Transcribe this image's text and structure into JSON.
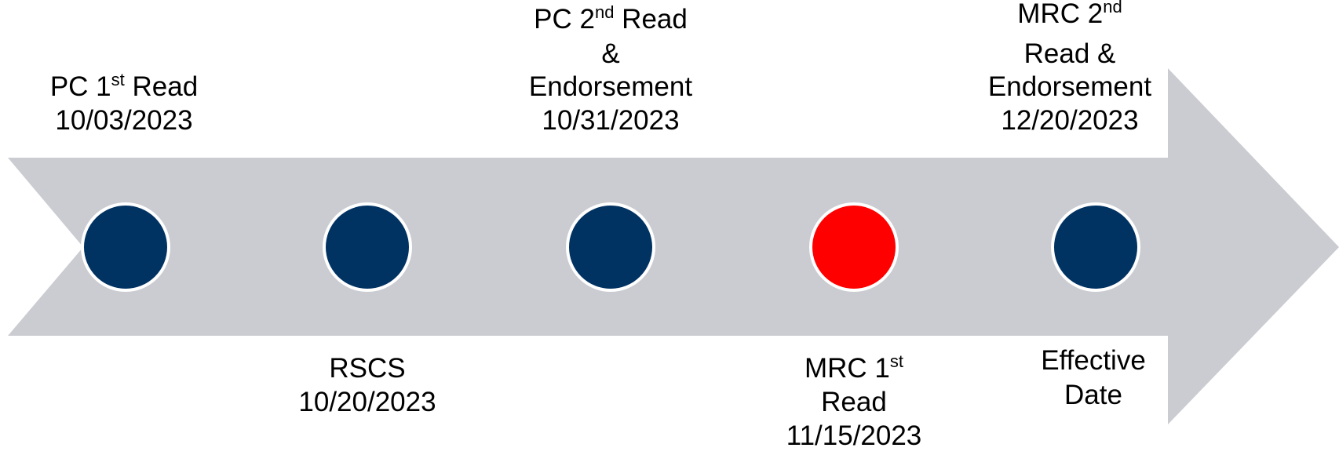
{
  "milestones": [
    {
      "lines": [
        {
          "text": "PC 1",
          "sup": "st",
          "after": " Read"
        },
        {
          "text": "10/03/2023"
        }
      ],
      "color": "#003262"
    },
    {
      "lines": [
        {
          "text": "RSCS"
        },
        {
          "text": "10/20/2023"
        }
      ],
      "color": "#003262"
    },
    {
      "lines": [
        {
          "text": "PC 2",
          "sup": "nd",
          "after": " Read"
        },
        {
          "text": "&"
        },
        {
          "text": "Endorsement"
        },
        {
          "text": "10/31/2023"
        }
      ],
      "color": "#003262"
    },
    {
      "lines": [
        {
          "text": "MRC 1",
          "sup": "st"
        },
        {
          "text": "Read"
        },
        {
          "text": "11/15/2023"
        }
      ],
      "color": "#ff0000"
    },
    {
      "lines": [
        {
          "text": "MRC 2",
          "sup": "nd"
        },
        {
          "text": "Read &"
        },
        {
          "text": "Endorsement"
        },
        {
          "text": "12/20/2023"
        }
      ],
      "color": "#003262"
    },
    {
      "lines": [
        {
          "text": "Effective"
        },
        {
          "text": "Date"
        }
      ]
    }
  ]
}
